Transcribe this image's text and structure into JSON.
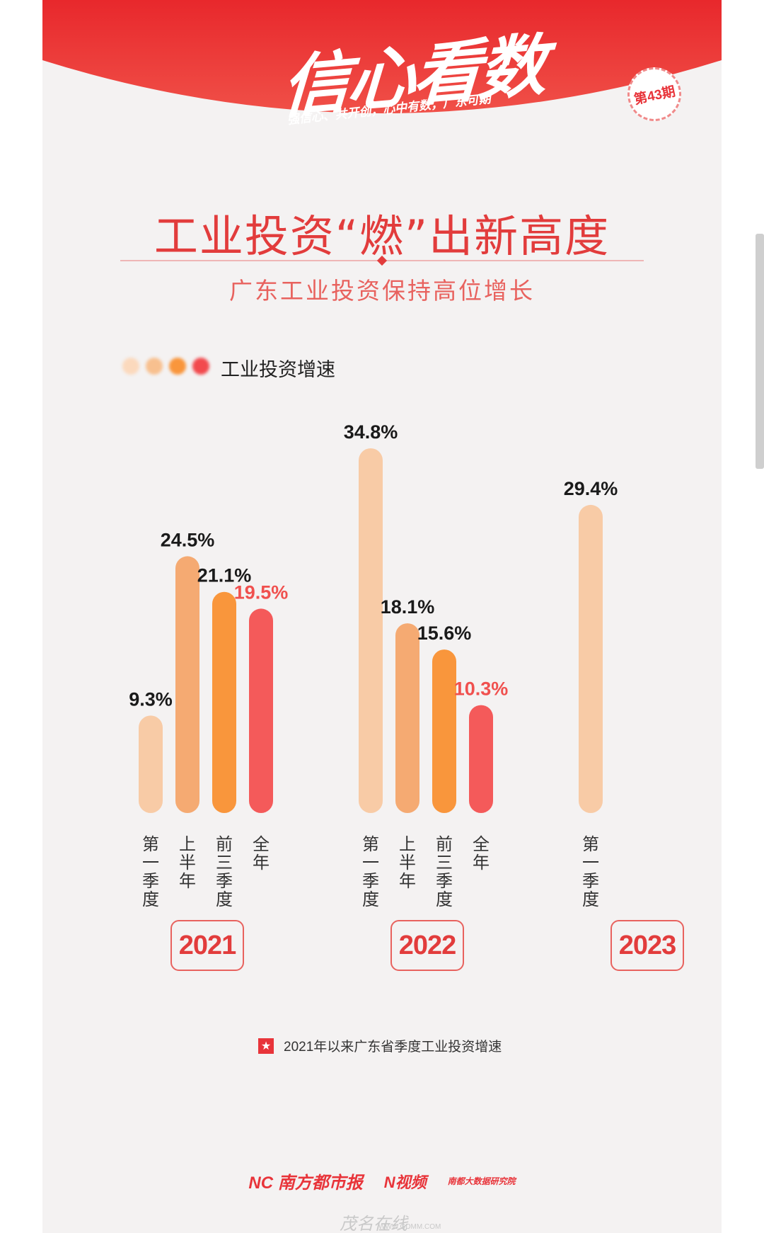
{
  "header": {
    "logo_text": "信心看数",
    "logo_sub": "强信心、共开创，心中有数，广东可期",
    "issue": "第43期"
  },
  "title": "工业投资“燃”出新高度",
  "subtitle": "广东工业投资保持高位增长",
  "legend_label": "工业投资增速",
  "colors": {
    "q1": "#f8cba6",
    "h1": "#f5aa72",
    "q3": "#f9963c",
    "full": "#f45a5a",
    "accent": "#e23c3c"
  },
  "chart_data": {
    "type": "bar",
    "title": "工业投资“燃”出新高度",
    "legend": [
      "工业投资增速"
    ],
    "groups": [
      {
        "year": "2021",
        "bars": [
          {
            "label": "第一季度",
            "value": 9.3,
            "text": "9.3%"
          },
          {
            "label": "上半年",
            "value": 24.5,
            "text": "24.5%"
          },
          {
            "label": "前三季度",
            "value": 21.1,
            "text": "21.1%"
          },
          {
            "label": "全年",
            "value": 19.5,
            "text": "19.5%"
          }
        ]
      },
      {
        "year": "2022",
        "bars": [
          {
            "label": "第一季度",
            "value": 34.8,
            "text": "34.8%"
          },
          {
            "label": "上半年",
            "value": 18.1,
            "text": "18.1%"
          },
          {
            "label": "前三季度",
            "value": 15.6,
            "text": "15.6%"
          },
          {
            "label": "全年",
            "value": 10.3,
            "text": "10.3%"
          }
        ]
      },
      {
        "year": "2023",
        "bars": [
          {
            "label": "第一季度",
            "value": 29.4,
            "text": "29.4%"
          }
        ]
      }
    ]
  },
  "footnote": "2021年以来广东省季度工业投资增速",
  "footer": {
    "logo1": "NC 南方都市报",
    "logo2": "N视频",
    "logo3": "南都大数据研究院"
  },
  "watermark": "茂名在线",
  "watermark_url": "WWW.GDMM.COM"
}
